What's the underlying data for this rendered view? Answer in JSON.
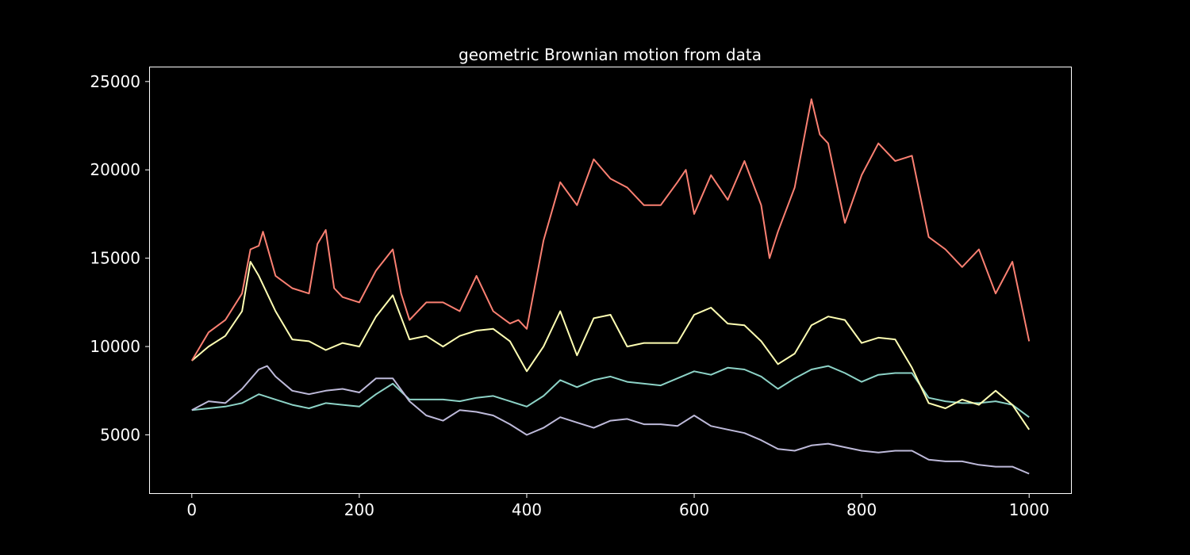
{
  "chart_data": {
    "type": "line",
    "title": "geometric Brownian motion from data",
    "xlabel": "",
    "ylabel": "",
    "xlim": [
      -50,
      1050
    ],
    "ylim": [
      1700,
      25800
    ],
    "grid": false,
    "background": "#000000",
    "axis_color": "#ffffff",
    "x_ticks": [
      0,
      200,
      400,
      600,
      800,
      1000
    ],
    "x_tick_labels": [
      "0",
      "200",
      "400",
      "600",
      "800",
      "1000"
    ],
    "y_ticks": [
      5000,
      10000,
      15000,
      20000,
      25000
    ],
    "y_tick_labels": [
      "5000",
      "10000",
      "15000",
      "20000",
      "25000"
    ],
    "series": [
      {
        "color": "#8dd3c7",
        "x": [
          0,
          20,
          40,
          60,
          80,
          100,
          120,
          140,
          160,
          180,
          200,
          220,
          240,
          260,
          280,
          300,
          320,
          340,
          360,
          380,
          400,
          420,
          440,
          460,
          480,
          500,
          520,
          540,
          560,
          580,
          600,
          620,
          640,
          660,
          680,
          700,
          720,
          740,
          760,
          780,
          800,
          820,
          840,
          860,
          880,
          900,
          920,
          940,
          960,
          980,
          1000
        ],
        "y": [
          6400,
          6500,
          6600,
          6800,
          7300,
          7000,
          6700,
          6500,
          6800,
          6700,
          6600,
          7300,
          7900,
          7000,
          7000,
          7000,
          6900,
          7100,
          7200,
          6900,
          6600,
          7200,
          8100,
          7700,
          8100,
          8300,
          8000,
          7900,
          7800,
          8200,
          8600,
          8400,
          8800,
          8700,
          8300,
          7600,
          8200,
          8700,
          8900,
          8500,
          8000,
          8400,
          8500,
          8500,
          7100,
          6900,
          6800,
          6800,
          6900,
          6700,
          6000
        ]
      },
      {
        "color": "#ffffb3",
        "x": [
          0,
          20,
          40,
          60,
          70,
          80,
          100,
          120,
          140,
          160,
          180,
          200,
          220,
          240,
          260,
          280,
          300,
          320,
          340,
          360,
          380,
          400,
          420,
          440,
          460,
          480,
          500,
          520,
          540,
          560,
          580,
          600,
          620,
          640,
          660,
          680,
          700,
          720,
          740,
          760,
          780,
          800,
          820,
          840,
          860,
          880,
          900,
          920,
          940,
          960,
          980,
          1000
        ],
        "y": [
          9200,
          10000,
          10600,
          12000,
          14800,
          14000,
          12000,
          10400,
          10300,
          9800,
          10200,
          10000,
          11700,
          12900,
          10400,
          10600,
          10000,
          10600,
          10900,
          11000,
          10300,
          8600,
          10000,
          12000,
          9500,
          11600,
          11800,
          10000,
          10200,
          10200,
          10200,
          11800,
          12200,
          11300,
          11200,
          10300,
          9000,
          9600,
          11200,
          11700,
          11500,
          10200,
          10500,
          10400,
          8800,
          6800,
          6500,
          7000,
          6700,
          7500,
          6700,
          5300
        ]
      },
      {
        "color": "#bebada",
        "x": [
          0,
          20,
          40,
          60,
          80,
          90,
          100,
          120,
          140,
          160,
          180,
          200,
          220,
          240,
          260,
          280,
          300,
          320,
          340,
          360,
          380,
          400,
          420,
          440,
          460,
          480,
          500,
          520,
          540,
          560,
          580,
          600,
          620,
          640,
          660,
          680,
          700,
          720,
          740,
          760,
          780,
          800,
          820,
          840,
          860,
          880,
          900,
          920,
          940,
          960,
          980,
          1000
        ],
        "y": [
          6400,
          6900,
          6800,
          7600,
          8700,
          8900,
          8300,
          7500,
          7300,
          7500,
          7600,
          7400,
          8200,
          8200,
          6900,
          6100,
          5800,
          6400,
          6300,
          6100,
          5600,
          5000,
          5400,
          6000,
          5700,
          5400,
          5800,
          5900,
          5600,
          5600,
          5500,
          6100,
          5500,
          5300,
          5100,
          4700,
          4200,
          4100,
          4400,
          4500,
          4300,
          4100,
          4000,
          4100,
          4100,
          3600,
          3500,
          3500,
          3300,
          3200,
          3200,
          2800
        ]
      },
      {
        "color": "#fb8072",
        "x": [
          0,
          20,
          40,
          60,
          70,
          80,
          85,
          100,
          120,
          140,
          150,
          160,
          170,
          180,
          200,
          220,
          240,
          250,
          260,
          280,
          300,
          320,
          340,
          360,
          380,
          390,
          400,
          420,
          440,
          460,
          480,
          500,
          520,
          540,
          560,
          580,
          590,
          600,
          620,
          640,
          660,
          680,
          690,
          700,
          720,
          740,
          750,
          760,
          780,
          800,
          820,
          840,
          860,
          880,
          900,
          920,
          940,
          960,
          980,
          1000
        ],
        "y": [
          9200,
          10800,
          11500,
          13000,
          15500,
          15700,
          16500,
          14000,
          13300,
          13000,
          15800,
          16600,
          13300,
          12800,
          12500,
          14300,
          15500,
          13000,
          11500,
          12500,
          12500,
          12000,
          14000,
          12000,
          11300,
          11500,
          11000,
          16000,
          19300,
          18000,
          20600,
          19500,
          19000,
          18000,
          18000,
          19300,
          20000,
          17500,
          19700,
          18300,
          20500,
          18000,
          15000,
          16500,
          19000,
          24000,
          22000,
          21500,
          17000,
          19700,
          21500,
          20500,
          20800,
          16200,
          15500,
          14500,
          15500,
          13000,
          14800,
          10300
        ]
      }
    ]
  }
}
